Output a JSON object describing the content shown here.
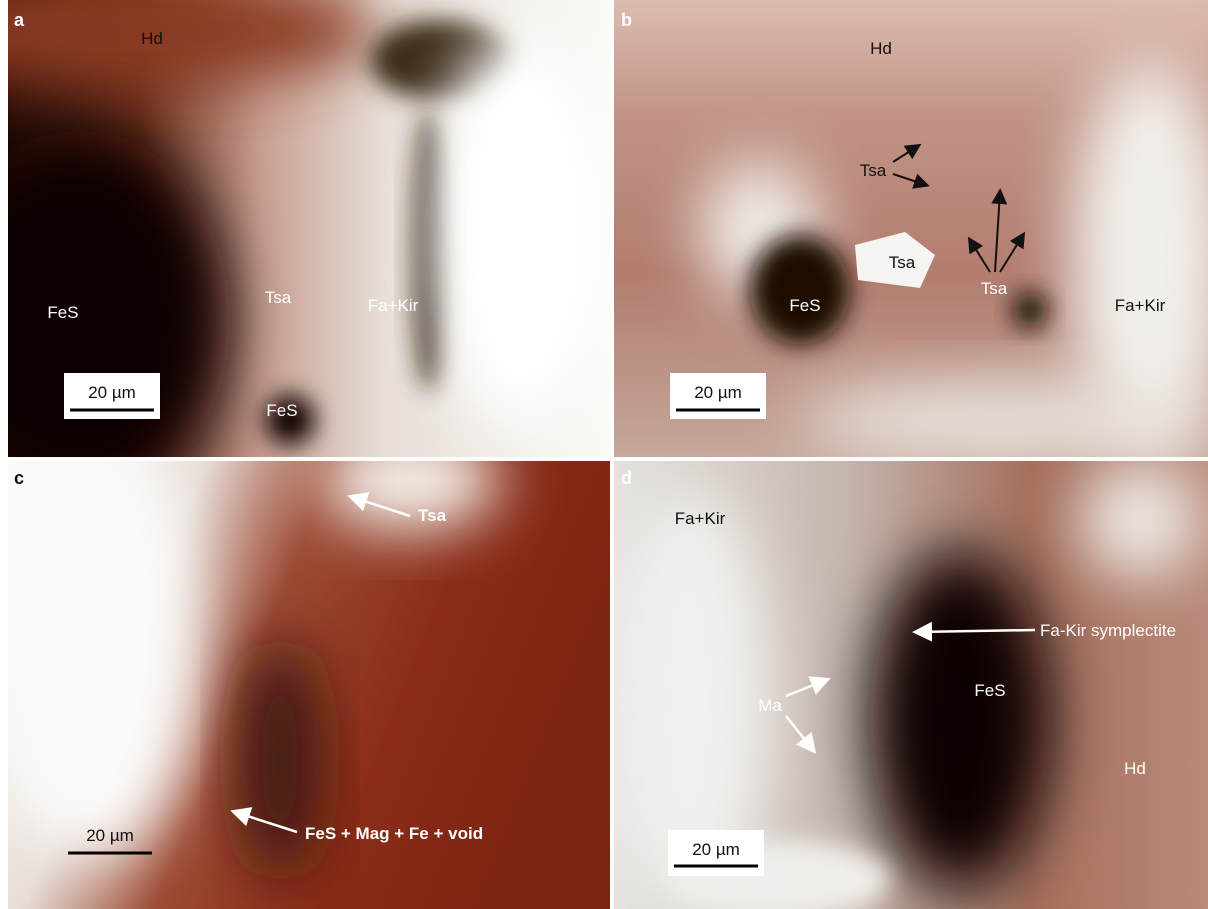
{
  "panels": [
    {
      "letter": "a",
      "scale_bar": "20 µm",
      "labels": [
        "Hd",
        "FeS",
        "Tsa",
        "Fa+Kir",
        "FeS"
      ]
    },
    {
      "letter": "b",
      "scale_bar": "20 µm",
      "labels": [
        "Hd",
        "Tsa",
        "Tsa",
        "Tsa",
        "FeS",
        "Fa+Kir"
      ]
    },
    {
      "letter": "c",
      "scale_bar": "20 µm",
      "labels": [
        "Tsa",
        "FeS + Mag + Fe + void"
      ]
    },
    {
      "letter": "d",
      "scale_bar": "20 µm",
      "labels": [
        "Fa+Kir",
        "Fa-Kir symplectite",
        "Ma",
        "FeS",
        "Hd"
      ]
    }
  ]
}
